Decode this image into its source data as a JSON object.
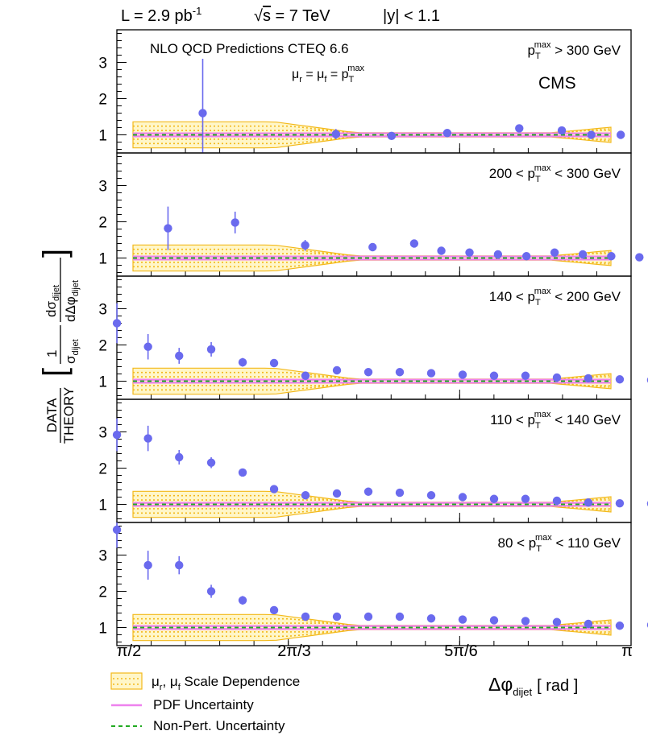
{
  "header": {
    "lumi": "L = 2.9 pb",
    "lumi_sup": "-1",
    "energy_prefix": "√",
    "energy_s": "s",
    "energy_rest": " = 7 TeV",
    "rapidity": "|y| < 1.1"
  },
  "annotations": {
    "nlo_label": "NLO QCD Predictions CTEQ 6.6",
    "mu_label": "μ",
    "mu_r": "r",
    "mu_eq": " = μ",
    "mu_f": "f",
    "mu_eq2": " = p",
    "mu_T": "T",
    "mu_max": "max",
    "cms": "CMS"
  },
  "y_axis": {
    "data": "DATA",
    "theory": "THEORY",
    "one": "1",
    "sigma_dijet": "σ",
    "sigma_sub": "dijet",
    "dsigma": "dσ",
    "dsigma_sub": "dijet",
    "dsigma_den": "dΔφ",
    "dsigma_den_sub": "dijet"
  },
  "x_axis": {
    "ticks": [
      "π/2",
      "2π/3",
      "5π/6",
      "π"
    ],
    "label_main": "Δφ",
    "label_sub": "dijet",
    "label_unit": "[ rad ]"
  },
  "legend": {
    "scale": "μ",
    "scale_r": "r",
    "scale_sep": ", μ",
    "scale_f": "f",
    "scale_rest": " Scale Dependence",
    "pdf": "PDF Uncertainty",
    "np": "Non-Pert. Uncertainty"
  },
  "chart_data": {
    "type": "scatter",
    "xlabel": "Δφ_dijet [ rad ]",
    "ylabel": "DATA/THEORY [1/σ_dijet dσ_dijet/dΔφ_dijet]",
    "xlim": [
      1.5708,
      3.14159
    ],
    "ylim": [
      0.5,
      3.9
    ],
    "y_ticks": [
      "1",
      "2",
      "3"
    ],
    "x": [
      1.571,
      1.6755,
      1.7802,
      1.885,
      1.9897,
      2.0944,
      2.1991,
      2.3038,
      2.4086,
      2.5133,
      2.618,
      2.7227,
      2.8274,
      2.9322,
      3.0369
    ],
    "colors": {
      "data": "#6a6aee",
      "scale": "#f3b91a",
      "pdf": "#ee82ee",
      "np": "#22aa22"
    },
    "panels": [
      {
        "label_pre": "p",
        "label_sub": "T",
        "label_sup": "max",
        "label_post": " > 300 GeV",
        "points": [
          {
            "x": 1.833,
            "y": 1.6,
            "err": 1.5
          },
          {
            "x": 2.24,
            "y": 1.02,
            "err": 0.14
          },
          {
            "x": 2.41,
            "y": 0.97,
            "err": 0.1
          },
          {
            "x": 2.58,
            "y": 1.05,
            "err": 0.06
          },
          {
            "x": 2.8,
            "y": 1.18,
            "err": 0.04
          },
          {
            "x": 2.93,
            "y": 1.12,
            "err": 0.03
          },
          {
            "x": 3.02,
            "y": 1.0,
            "err": 0.03
          },
          {
            "x": 3.11,
            "y": 1.0,
            "err": 0.02
          }
        ]
      },
      {
        "label_pre": "200 < p",
        "label_sub": "T",
        "label_sup": "max",
        "label_post": " < 300 GeV",
        "points": [
          {
            "x": 1.727,
            "y": 1.82,
            "err": 0.6
          },
          {
            "x": 1.932,
            "y": 1.98,
            "err": 0.3
          },
          {
            "x": 2.146,
            "y": 1.35,
            "err": 0.15
          },
          {
            "x": 2.352,
            "y": 1.3,
            "err": 0.06
          },
          {
            "x": 2.479,
            "y": 1.4,
            "err": 0.05
          },
          {
            "x": 2.562,
            "y": 1.2,
            "err": 0.04
          },
          {
            "x": 2.648,
            "y": 1.15,
            "err": 0.03
          },
          {
            "x": 2.735,
            "y": 1.1,
            "err": 0.03
          },
          {
            "x": 2.822,
            "y": 1.05,
            "err": 0.03
          },
          {
            "x": 2.908,
            "y": 1.15,
            "err": 0.02
          },
          {
            "x": 2.994,
            "y": 1.1,
            "err": 0.02
          },
          {
            "x": 3.081,
            "y": 1.05,
            "err": 0.02
          },
          {
            "x": 3.167,
            "y": 1.02,
            "err": 0.02
          }
        ]
      },
      {
        "label_pre": "140 < p",
        "label_sub": "T",
        "label_sup": "max",
        "label_post": " < 200 GeV",
        "points": [
          {
            "x": 1.571,
            "y": 2.6,
            "err": 0.55
          },
          {
            "x": 1.666,
            "y": 1.95,
            "err": 0.35
          },
          {
            "x": 1.761,
            "y": 1.7,
            "err": 0.22
          },
          {
            "x": 1.859,
            "y": 1.88,
            "err": 0.2
          },
          {
            "x": 1.955,
            "y": 1.52,
            "err": 0.12
          },
          {
            "x": 2.051,
            "y": 1.5,
            "err": 0.08
          },
          {
            "x": 2.147,
            "y": 1.15,
            "err": 0.06
          },
          {
            "x": 2.243,
            "y": 1.3,
            "err": 0.05
          },
          {
            "x": 2.339,
            "y": 1.25,
            "err": 0.04
          },
          {
            "x": 2.435,
            "y": 1.25,
            "err": 0.03
          },
          {
            "x": 2.531,
            "y": 1.22,
            "err": 0.03
          },
          {
            "x": 2.627,
            "y": 1.18,
            "err": 0.03
          },
          {
            "x": 2.723,
            "y": 1.15,
            "err": 0.03
          },
          {
            "x": 2.819,
            "y": 1.15,
            "err": 0.02
          },
          {
            "x": 2.915,
            "y": 1.1,
            "err": 0.02
          },
          {
            "x": 3.011,
            "y": 1.08,
            "err": 0.02
          },
          {
            "x": 3.107,
            "y": 1.05,
            "err": 0.02
          },
          {
            "x": 3.203,
            "y": 1.03,
            "err": 0.02
          }
        ]
      },
      {
        "label_pre": "110 < p",
        "label_sub": "T",
        "label_sup": "max",
        "label_post": " < 140 GeV",
        "points": [
          {
            "x": 1.571,
            "y": 2.92,
            "err": 0.45
          },
          {
            "x": 1.666,
            "y": 2.82,
            "err": 0.35
          },
          {
            "x": 1.761,
            "y": 2.3,
            "err": 0.2
          },
          {
            "x": 1.859,
            "y": 2.15,
            "err": 0.15
          },
          {
            "x": 1.955,
            "y": 1.88,
            "err": 0.1
          },
          {
            "x": 2.051,
            "y": 1.42,
            "err": 0.06
          },
          {
            "x": 2.147,
            "y": 1.25,
            "err": 0.05
          },
          {
            "x": 2.243,
            "y": 1.3,
            "err": 0.04
          },
          {
            "x": 2.339,
            "y": 1.35,
            "err": 0.04
          },
          {
            "x": 2.435,
            "y": 1.32,
            "err": 0.03
          },
          {
            "x": 2.531,
            "y": 1.25,
            "err": 0.03
          },
          {
            "x": 2.627,
            "y": 1.2,
            "err": 0.03
          },
          {
            "x": 2.723,
            "y": 1.15,
            "err": 0.03
          },
          {
            "x": 2.819,
            "y": 1.15,
            "err": 0.02
          },
          {
            "x": 2.915,
            "y": 1.1,
            "err": 0.02
          },
          {
            "x": 3.011,
            "y": 1.05,
            "err": 0.02
          },
          {
            "x": 3.107,
            "y": 1.03,
            "err": 0.02
          },
          {
            "x": 3.203,
            "y": 1.02,
            "err": 0.02
          }
        ]
      },
      {
        "label_pre": "80 < p",
        "label_sub": "T",
        "label_sup": "max",
        "label_post": " < 110 GeV",
        "points": [
          {
            "x": 1.571,
            "y": 3.7,
            "err": 0.5
          },
          {
            "x": 1.666,
            "y": 2.72,
            "err": 0.4
          },
          {
            "x": 1.761,
            "y": 2.72,
            "err": 0.25
          },
          {
            "x": 1.859,
            "y": 2.0,
            "err": 0.18
          },
          {
            "x": 1.955,
            "y": 1.75,
            "err": 0.12
          },
          {
            "x": 2.051,
            "y": 1.48,
            "err": 0.06
          },
          {
            "x": 2.147,
            "y": 1.3,
            "err": 0.05
          },
          {
            "x": 2.243,
            "y": 1.3,
            "err": 0.04
          },
          {
            "x": 2.339,
            "y": 1.3,
            "err": 0.04
          },
          {
            "x": 2.435,
            "y": 1.3,
            "err": 0.03
          },
          {
            "x": 2.531,
            "y": 1.25,
            "err": 0.03
          },
          {
            "x": 2.627,
            "y": 1.22,
            "err": 0.03
          },
          {
            "x": 2.723,
            "y": 1.2,
            "err": 0.03
          },
          {
            "x": 2.819,
            "y": 1.18,
            "err": 0.02
          },
          {
            "x": 2.915,
            "y": 1.15,
            "err": 0.02
          },
          {
            "x": 3.011,
            "y": 1.1,
            "err": 0.02
          },
          {
            "x": 3.107,
            "y": 1.05,
            "err": 0.02
          },
          {
            "x": 3.203,
            "y": 1.07,
            "err": 0.02
          }
        ]
      }
    ]
  }
}
